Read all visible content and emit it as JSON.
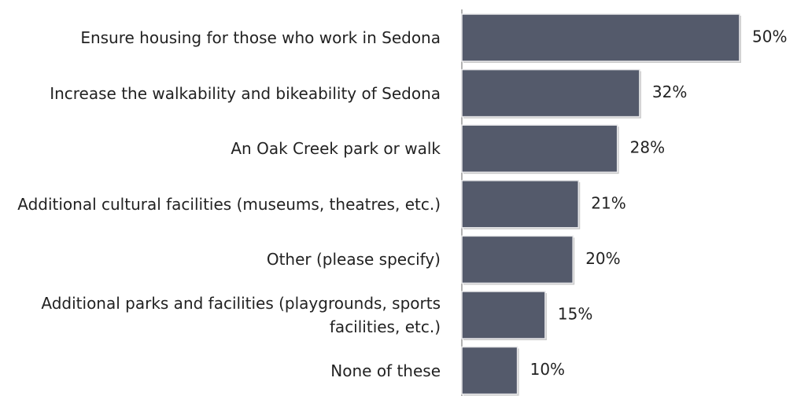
{
  "chart_data": {
    "type": "bar",
    "orientation": "horizontal",
    "categories": [
      "Ensure housing for those who work in Sedona",
      "Increase the walkability and bikeability of Sedona",
      "An Oak Creek park or walk",
      "Additional cultural facilities (museums, theatres, etc.)",
      "Other (please specify)",
      "Additional parks and facilities (playgrounds, sports facilities, etc.)",
      "None of these"
    ],
    "values": [
      50,
      32,
      28,
      21,
      20,
      15,
      10
    ],
    "value_labels": [
      "50%",
      "32%",
      "28%",
      "21%",
      "20%",
      "15%",
      "10%"
    ],
    "color": "#545a6b",
    "xlim": [
      0,
      50
    ]
  }
}
